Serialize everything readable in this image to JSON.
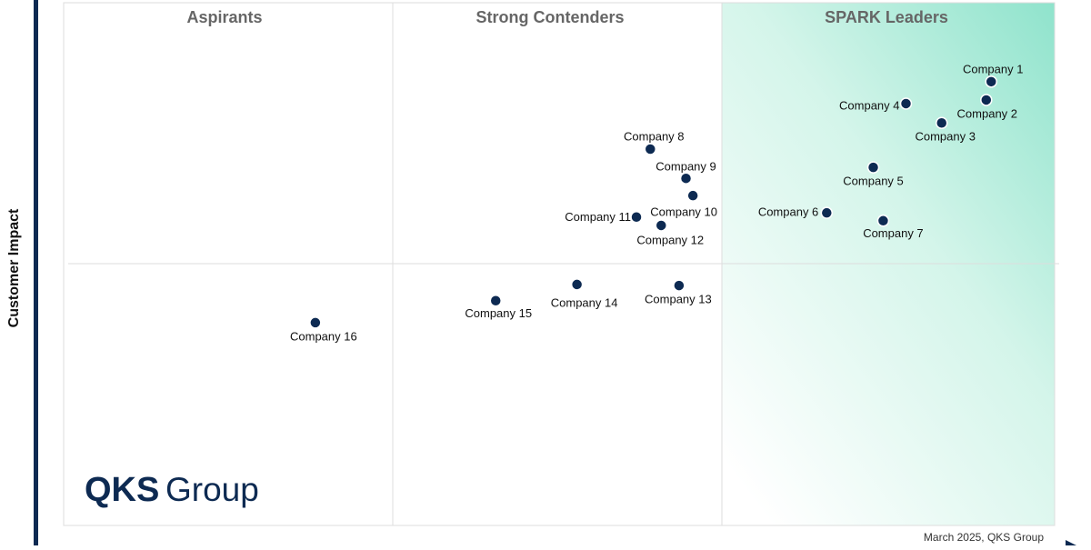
{
  "chart_data": {
    "type": "scatter",
    "quadrant_labels": [
      "Aspirants",
      "Strong Contenders",
      "SPARK Leaders"
    ],
    "y_label": "Customer Impact",
    "note": "March 2025, QKS Group",
    "logo": {
      "bold": "QKS",
      "regular": "Group"
    },
    "xlim": [
      0,
      100
    ],
    "ylim": [
      0,
      100
    ],
    "color": "#0d2a52",
    "names": [
      "Company 1",
      "Company 2",
      "Company 3",
      "Company 4",
      "Company 5",
      "Company 6",
      "Company 7",
      "Company 8",
      "Company 9",
      "Company 10",
      "Company 11",
      "Company 12",
      "Company 13",
      "Company 14",
      "Company 15",
      "Company 16"
    ],
    "x": [
      93.6,
      93.1,
      88.6,
      85.0,
      81.7,
      77.0,
      82.7,
      59.2,
      62.8,
      63.5,
      57.8,
      60.3,
      62.1,
      51.8,
      43.6,
      25.4
    ],
    "y": [
      84.9,
      81.4,
      77.0,
      80.7,
      68.5,
      59.8,
      58.3,
      72.0,
      66.4,
      63.1,
      59.0,
      57.4,
      45.9,
      46.1,
      43.0,
      38.8
    ]
  }
}
